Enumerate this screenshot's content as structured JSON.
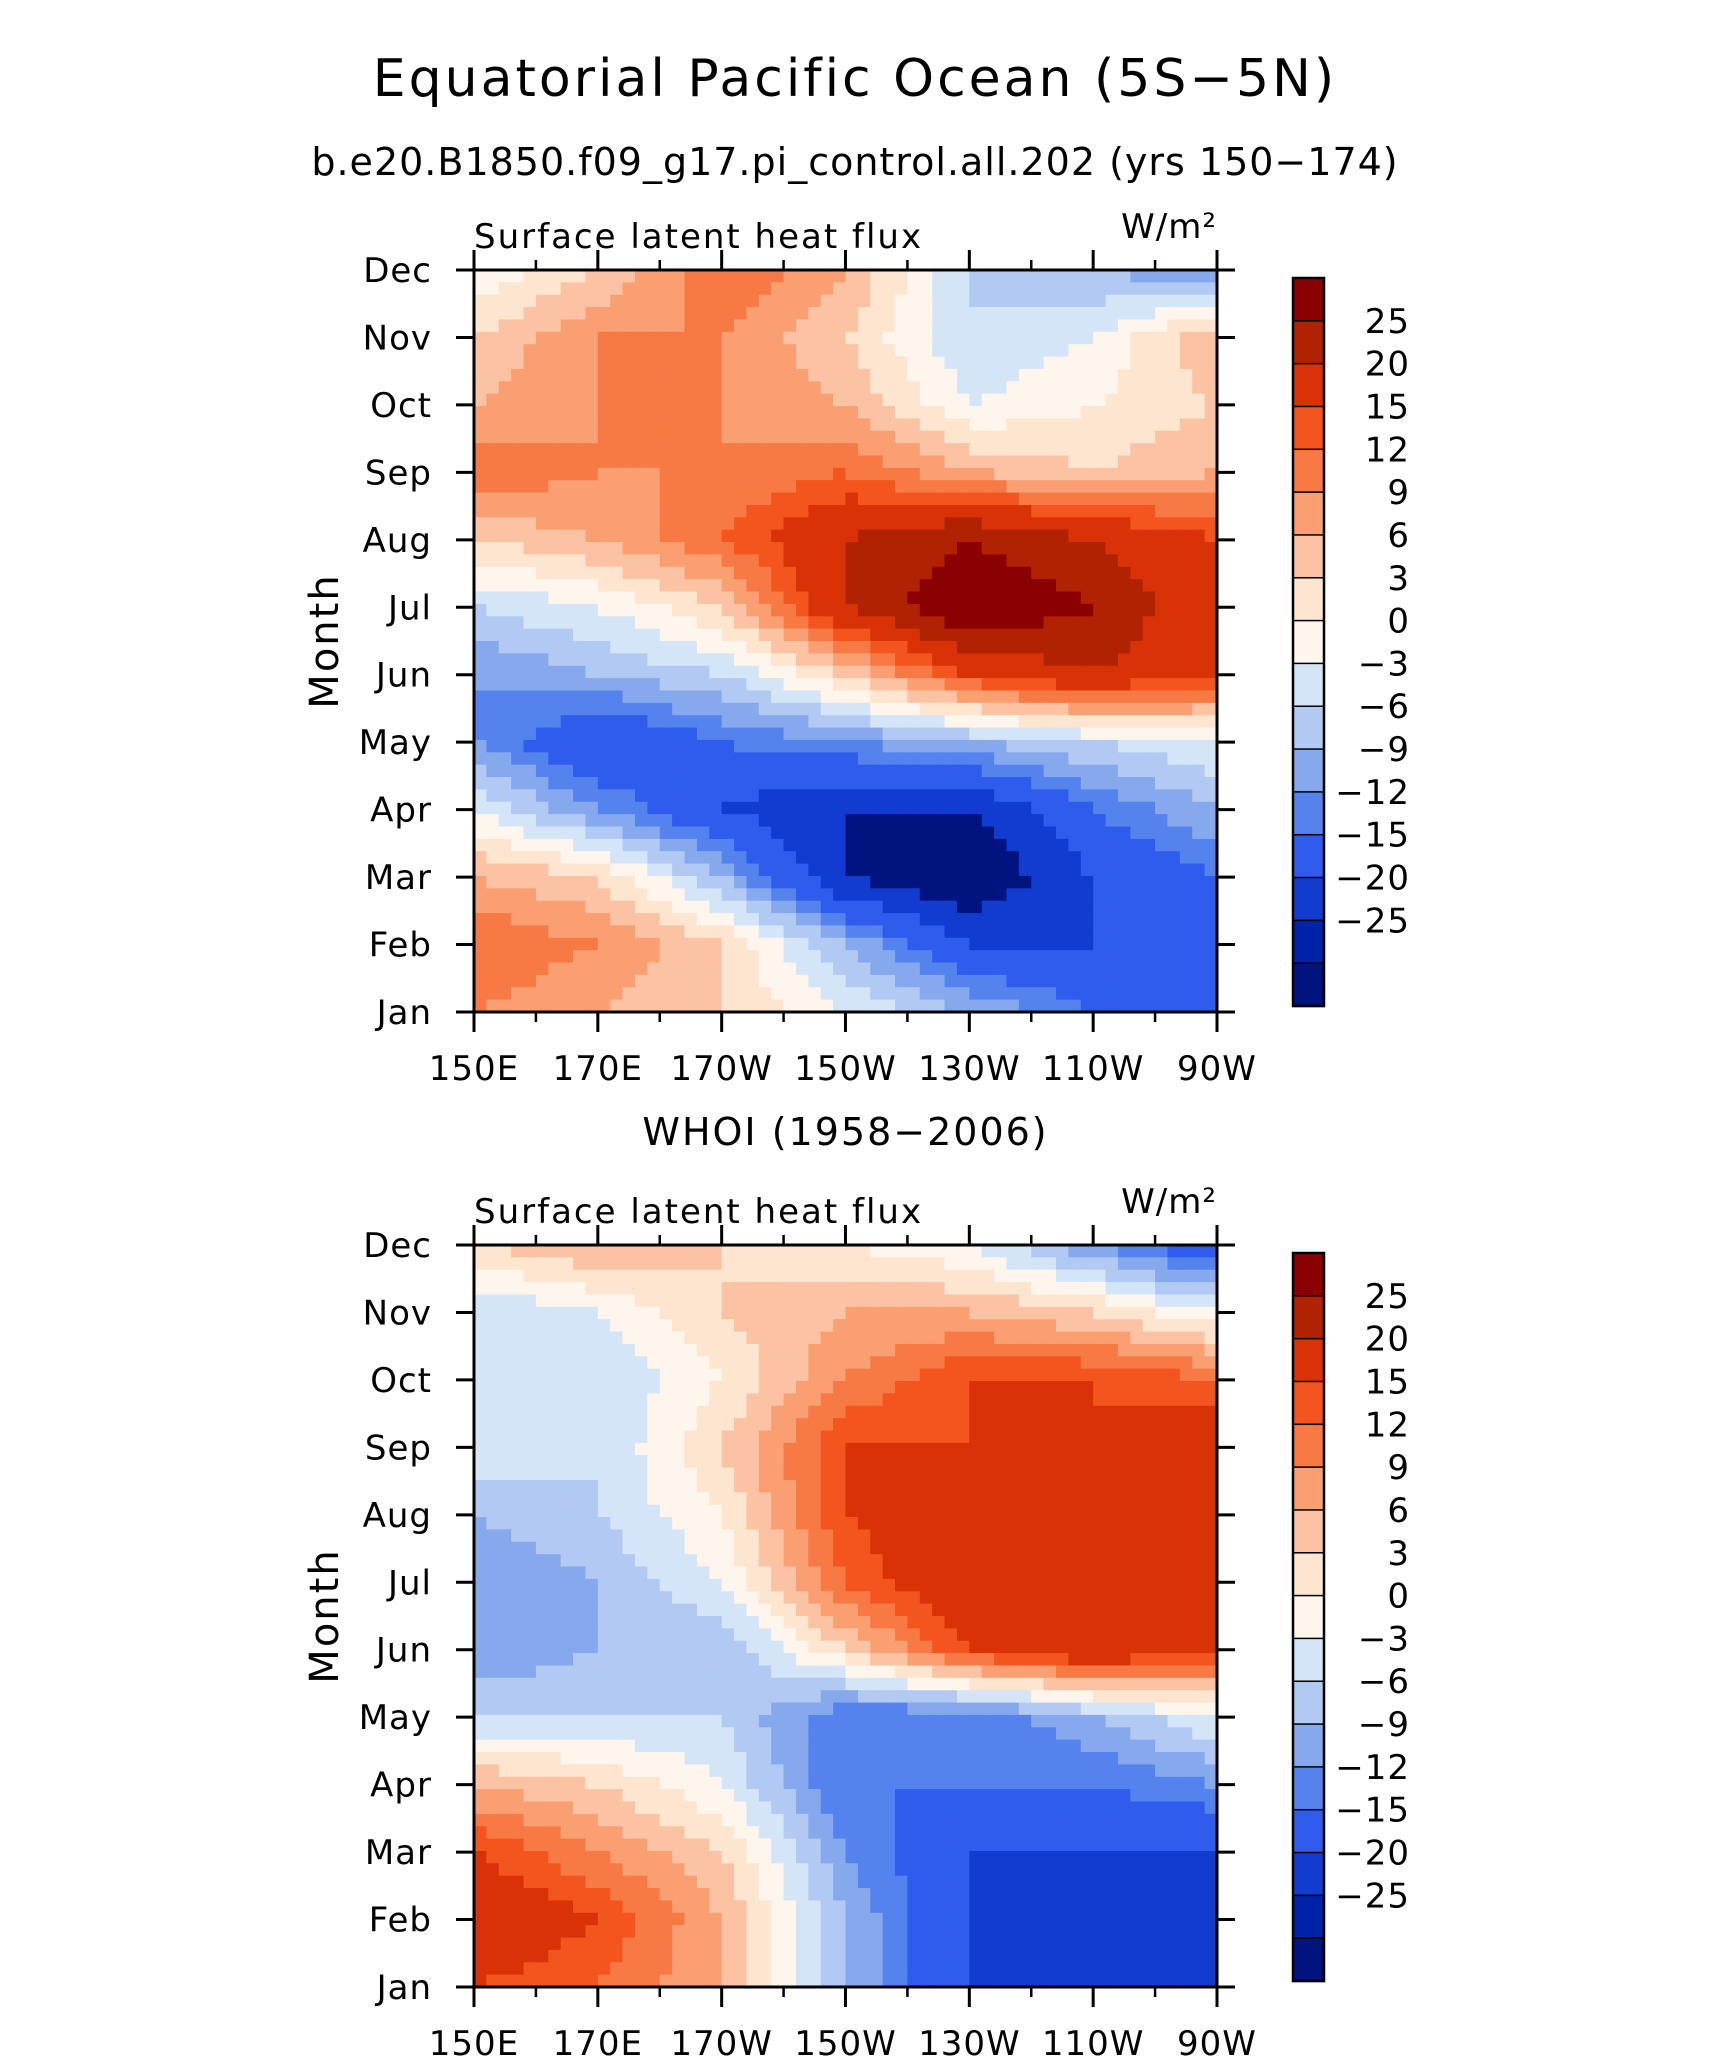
{
  "title": "Equatorial Pacific Ocean (5S−5N)",
  "subtitle": "b.e20.B1850.f09_g17.pi_control.all.202 (yrs 150−174)",
  "chart_data": [
    {
      "type": "heatmap",
      "panel_title": "",
      "left_label": "Surface latent heat flux",
      "right_label": "W/m²",
      "ylabel": "Month",
      "x_tick_labels": [
        "150E",
        "170E",
        "170W",
        "150W",
        "130W",
        "110W",
        "90W"
      ],
      "y_tick_labels": [
        "Jan",
        "Feb",
        "Mar",
        "Apr",
        "May",
        "Jun",
        "Jul",
        "Aug",
        "Sep",
        "Oct",
        "Nov",
        "Dec"
      ],
      "x_range_deg_east": [
        150,
        270
      ],
      "y_range_month_index": [
        1,
        12
      ],
      "field_center": [
        [
          9,
          6,
          3,
          -3,
          -9,
          -15,
          -15
        ],
        [
          12,
          9,
          3,
          -9,
          -20,
          -20,
          -15
        ],
        [
          6,
          3,
          -9,
          -25,
          -30,
          -20,
          -15
        ],
        [
          -3,
          -12,
          -20,
          -25,
          -25,
          -15,
          -9
        ],
        [
          -12,
          -20,
          -15,
          -12,
          -9,
          -6,
          -3
        ],
        [
          -12,
          -9,
          -6,
          3,
          15,
          20,
          15
        ],
        [
          -6,
          -3,
          3,
          20,
          30,
          25,
          15
        ],
        [
          3,
          6,
          12,
          20,
          25,
          20,
          15
        ],
        [
          12,
          9,
          9,
          12,
          6,
          3,
          6
        ],
        [
          6,
          9,
          9,
          6,
          -3,
          0,
          3
        ],
        [
          3,
          9,
          9,
          3,
          -6,
          -3,
          6
        ],
        [
          -3,
          3,
          12,
          6,
          -6,
          -9,
          -12
        ]
      ],
      "colorbar_levels": [
        "25",
        "20",
        "15",
        "12",
        "9",
        "6",
        "3",
        "0",
        "−3",
        "−6",
        "−9",
        "−12",
        "−15",
        "−20",
        "−25"
      ],
      "colorbar_colors": [
        "#8b0000",
        "#b02202",
        "#d83206",
        "#f4541e",
        "#f77944",
        "#fa9f72",
        "#fbc3a3",
        "#fde5cf",
        "#fef5ec",
        "#d5e5f8",
        "#b1c9f3",
        "#86a9ee",
        "#5483ed",
        "#2f5cec",
        "#123cd0",
        "#0022a8",
        "#00137f"
      ]
    },
    {
      "type": "heatmap",
      "panel_title": "WHOI (1958−2006)",
      "left_label": "Surface latent heat flux",
      "right_label": "W/m²",
      "ylabel": "Month",
      "x_tick_labels": [
        "150E",
        "170E",
        "170W",
        "150W",
        "130W",
        "110W",
        "90W"
      ],
      "y_tick_labels": [
        "Jan",
        "Feb",
        "Mar",
        "Apr",
        "May",
        "Jun",
        "Jul",
        "Aug",
        "Sep",
        "Oct",
        "Nov",
        "Dec"
      ],
      "x_range_deg_east": [
        150,
        270
      ],
      "y_range_month_index": [
        1,
        12
      ],
      "field_center": [
        [
          15,
          12,
          6,
          -9,
          -20,
          -20,
          -25
        ],
        [
          20,
          15,
          6,
          -9,
          -20,
          -25,
          -25
        ],
        [
          15,
          9,
          3,
          -12,
          -20,
          -20,
          -20
        ],
        [
          6,
          3,
          -3,
          -15,
          -15,
          -15,
          -12
        ],
        [
          -6,
          -6,
          -6,
          -15,
          -15,
          -9,
          -3
        ],
        [
          -12,
          -9,
          -9,
          3,
          15,
          20,
          15
        ],
        [
          -12,
          -9,
          -3,
          12,
          20,
          20,
          20
        ],
        [
          -9,
          -6,
          0,
          15,
          20,
          15,
          20
        ],
        [
          -3,
          -6,
          3,
          15,
          15,
          15,
          20
        ],
        [
          -3,
          -6,
          0,
          9,
          15,
          15,
          12
        ],
        [
          -6,
          -3,
          3,
          6,
          6,
          3,
          -3
        ],
        [
          3,
          6,
          3,
          0,
          -3,
          -12,
          -20
        ]
      ],
      "colorbar_levels": [
        "25",
        "20",
        "15",
        "12",
        "9",
        "6",
        "3",
        "0",
        "−3",
        "−6",
        "−9",
        "−12",
        "−15",
        "−20",
        "−25"
      ],
      "colorbar_colors": [
        "#8b0000",
        "#b02202",
        "#d83206",
        "#f4541e",
        "#f77944",
        "#fa9f72",
        "#fbc3a3",
        "#fde5cf",
        "#fef5ec",
        "#d5e5f8",
        "#b1c9f3",
        "#86a9ee",
        "#5483ed",
        "#2f5cec",
        "#123cd0",
        "#0022a8",
        "#00137f"
      ]
    }
  ]
}
